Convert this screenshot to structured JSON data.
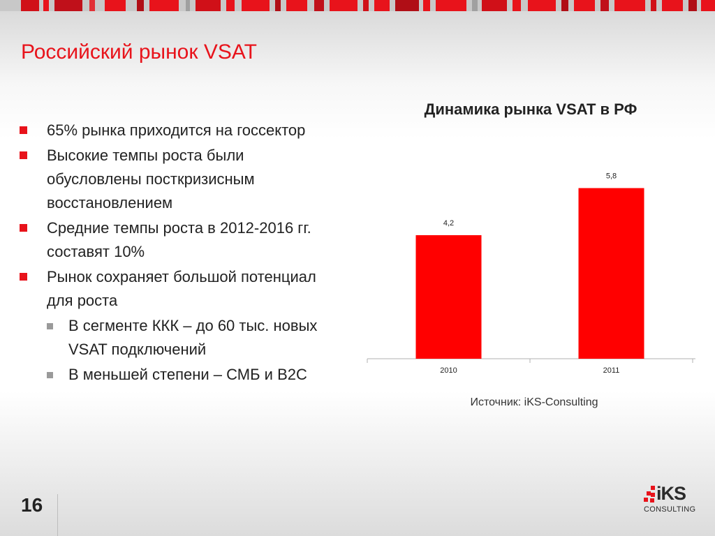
{
  "slide": {
    "title": "Российский рынок VSAT",
    "page_number": "16"
  },
  "bullets": [
    {
      "text": "65% рынка приходится на госсектор",
      "level": 1
    },
    {
      "text": "Высокие темпы роста  были обусловлены посткризисным восстановлением",
      "level": 1
    },
    {
      "text": "Средние темпы роста в 2012-2016 гг. составят 10%",
      "level": 1
    },
    {
      "text": "Рынок сохраняет большой потенциал для роста",
      "level": 1
    },
    {
      "text": "В сегменте ККК – до 60 тыс. новых VSAT подключений",
      "level": 2
    },
    {
      "text": "В меньшей степени – СМБ и B2C",
      "level": 2
    }
  ],
  "chart_title": "Динамика рынка VSAT в РФ",
  "chart_data": {
    "type": "bar",
    "categories": [
      "2010",
      "2011"
    ],
    "values": [
      4.2,
      5.8
    ],
    "value_labels": [
      "4,2",
      "5,8"
    ],
    "title": "Динамика рынка VSAT в РФ",
    "xlabel": "",
    "ylabel": "",
    "ylim": [
      0,
      6.5
    ],
    "grid": false,
    "legend": "none",
    "bar_color": "#ff0000"
  },
  "chart_source": "Источник: iKS-Consulting",
  "logo": {
    "main": "iKS",
    "sub": "CONSULTING",
    "accent_color": "#e8131b"
  },
  "colors": {
    "accent": "#e8131b",
    "text": "#222222",
    "sub_marker": "#9a9a9a"
  }
}
